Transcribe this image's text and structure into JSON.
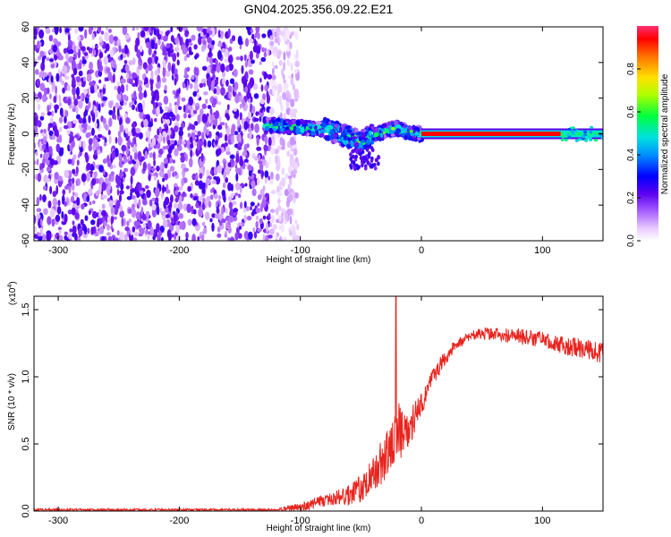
{
  "figure": {
    "title": "GN04.2025.356.09.22.E21"
  },
  "chart_data": [
    {
      "type": "heatmap",
      "name": "spectrogram",
      "xlabel": "Height of straight line (km)",
      "ylabel": "Frequency (Hz)",
      "xlim": [
        -320,
        150
      ],
      "ylim": [
        -60,
        60
      ],
      "xticks": [
        -300,
        -200,
        -100,
        0,
        100
      ],
      "xtick_labels": [
        "-300",
        "-200",
        "-100",
        "0",
        "100"
      ],
      "yticks": [
        60,
        40,
        20,
        0,
        -20,
        -40,
        -60
      ],
      "ytick_labels": [
        "60",
        "40",
        "20",
        "0",
        "-20",
        "-40",
        "-60"
      ],
      "colorbar": {
        "label": "Normalized spectral amplitude",
        "range": [
          0.0,
          1.0
        ],
        "ticks": [
          0.0,
          0.2,
          0.4,
          0.6,
          0.8
        ],
        "tick_labels": [
          "0.0",
          "0.2",
          "0.4",
          "0.6",
          "0.8"
        ]
      },
      "regions": {
        "noise_band": {
          "x_range": [
            -320,
            -110
          ],
          "y_range": [
            -60,
            60
          ]
        },
        "dispersive_signal": {
          "x": [
            -130,
            -110,
            -90,
            -75,
            -60,
            -50,
            -42,
            -35,
            -28,
            -20,
            -12,
            -5,
            0
          ],
          "freq": [
            5,
            4,
            3,
            2,
            -2,
            -5,
            -1,
            0,
            2,
            3,
            1,
            0,
            0
          ]
        },
        "carrier_line": {
          "x_range": [
            0,
            150
          ],
          "freq": 0,
          "peak_amplitude": 1.0
        }
      }
    },
    {
      "type": "line",
      "name": "snr",
      "xlabel": "Height of straight line (km)",
      "ylabel": "SNR (10 * v/v)",
      "scale_label": "(x10",
      "scale_exponent": "4",
      "xlim": [
        -320,
        150
      ],
      "ylim": [
        0,
        1.6
      ],
      "xticks": [
        -300,
        -200,
        -100,
        0,
        100
      ],
      "xtick_labels": [
        "-300",
        "-200",
        "-100",
        "0",
        "100"
      ],
      "yticks": [
        0.0,
        0.5,
        1.0,
        1.5
      ],
      "ytick_labels": [
        "0.0",
        "0.5",
        "1.0",
        "1.5"
      ],
      "color": "#e8241e",
      "envelope": {
        "x": [
          -320,
          -120,
          -100,
          -80,
          -60,
          -45,
          -30,
          -22,
          -20,
          -15,
          -5,
          0,
          10,
          20,
          30,
          45,
          60,
          80,
          100,
          120,
          150
        ],
        "mean": [
          0.01,
          0.01,
          0.03,
          0.08,
          0.12,
          0.2,
          0.4,
          0.5,
          0.65,
          0.55,
          0.7,
          0.8,
          1.0,
          1.15,
          1.25,
          1.32,
          1.32,
          1.3,
          1.28,
          1.23,
          1.18
        ],
        "noise": [
          0.008,
          0.008,
          0.03,
          0.05,
          0.08,
          0.12,
          0.18,
          0.2,
          0.22,
          0.18,
          0.12,
          0.08,
          0.07,
          0.06,
          0.04,
          0.04,
          0.05,
          0.06,
          0.06,
          0.07,
          0.08
        ]
      },
      "spike": {
        "x": -21,
        "y": 1.6
      }
    }
  ]
}
